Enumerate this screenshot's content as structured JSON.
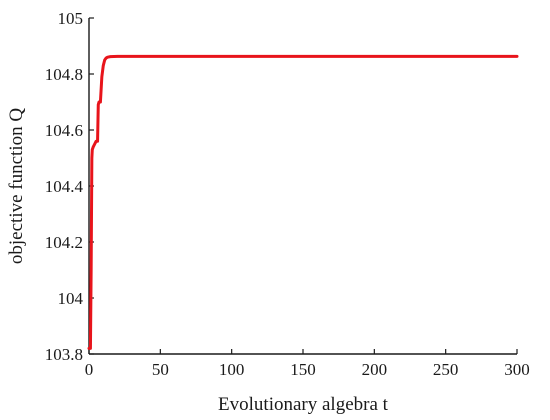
{
  "chart_data": {
    "type": "line",
    "title": "",
    "xlabel": "Evolutionary algebra t",
    "ylabel": "objective function Q",
    "xlim": [
      0,
      300
    ],
    "ylim": [
      103.8,
      105
    ],
    "xticks": [
      0,
      50,
      100,
      150,
      200,
      250,
      300
    ],
    "xtick_labels": [
      "0",
      "50",
      "100",
      "150",
      "200",
      "250",
      "300"
    ],
    "yticks": [
      103.8,
      104,
      104.2,
      104.4,
      104.6,
      104.8,
      105
    ],
    "ytick_labels": [
      "103.8",
      "104",
      "104.2",
      "104.4",
      "104.6",
      "104.8",
      "105"
    ],
    "grid": false,
    "series": [
      {
        "color": "#e8141b",
        "x": [
          0,
          1,
          1.5,
          2,
          2.3,
          3,
          4,
          5,
          6,
          6.5,
          7,
          8,
          9,
          10,
          11,
          12,
          13,
          15,
          20,
          30,
          50,
          100,
          150,
          200,
          250,
          300
        ],
        "y": [
          103.82,
          103.82,
          104.1,
          104.5,
          104.53,
          104.54,
          104.55,
          104.56,
          104.56,
          104.69,
          104.7,
          104.7,
          104.79,
          104.83,
          104.85,
          104.857,
          104.86,
          104.862,
          104.863,
          104.863,
          104.863,
          104.863,
          104.863,
          104.863,
          104.863,
          104.863
        ]
      }
    ]
  }
}
